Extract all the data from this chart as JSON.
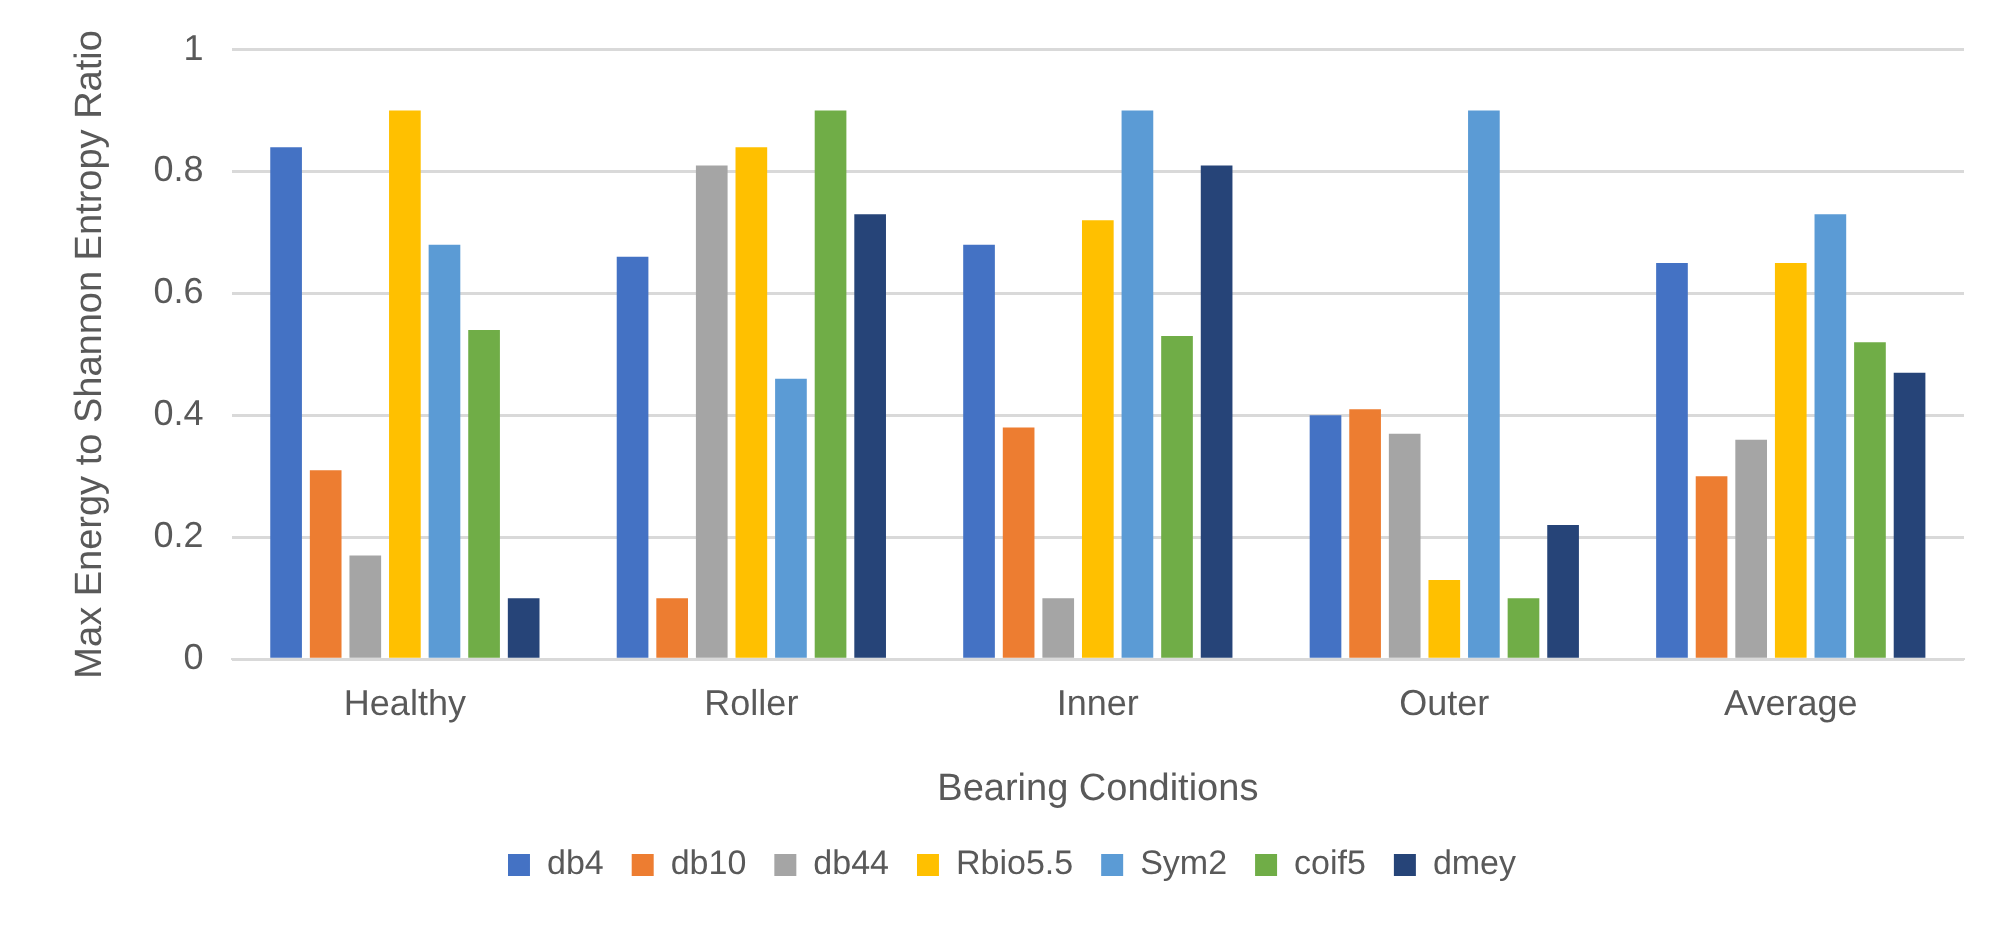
{
  "chart_data": {
    "type": "bar",
    "xlabel": "Bearing Conditions",
    "ylabel": "Max Energy to Shannon Entropy Ratio",
    "categories": [
      "Healthy",
      "Roller",
      "Inner",
      "Outer",
      "Average"
    ],
    "series": [
      {
        "name": "db4",
        "color": "#4472c4",
        "values": [
          0.84,
          0.66,
          0.68,
          0.4,
          0.65
        ]
      },
      {
        "name": "db10",
        "color": "#ed7d31",
        "values": [
          0.31,
          0.1,
          0.38,
          0.41,
          0.3
        ]
      },
      {
        "name": "db44",
        "color": "#a5a5a5",
        "values": [
          0.17,
          0.81,
          0.1,
          0.37,
          0.36
        ]
      },
      {
        "name": "Rbio5.5",
        "color": "#ffc000",
        "values": [
          0.9,
          0.84,
          0.72,
          0.13,
          0.65
        ]
      },
      {
        "name": "Sym2",
        "color": "#5b9bd5",
        "values": [
          0.68,
          0.46,
          0.9,
          0.9,
          0.73
        ]
      },
      {
        "name": "coif5",
        "color": "#70ad47",
        "values": [
          0.54,
          0.9,
          0.53,
          0.1,
          0.52
        ]
      },
      {
        "name": "dmey",
        "color": "#264478",
        "values": [
          0.1,
          0.73,
          0.81,
          0.22,
          0.47
        ]
      }
    ],
    "ylim": [
      0,
      1
    ],
    "yticks": [
      0,
      0.2,
      0.4,
      0.6,
      0.8,
      1
    ],
    "grid": "y",
    "legend": "bottom"
  }
}
